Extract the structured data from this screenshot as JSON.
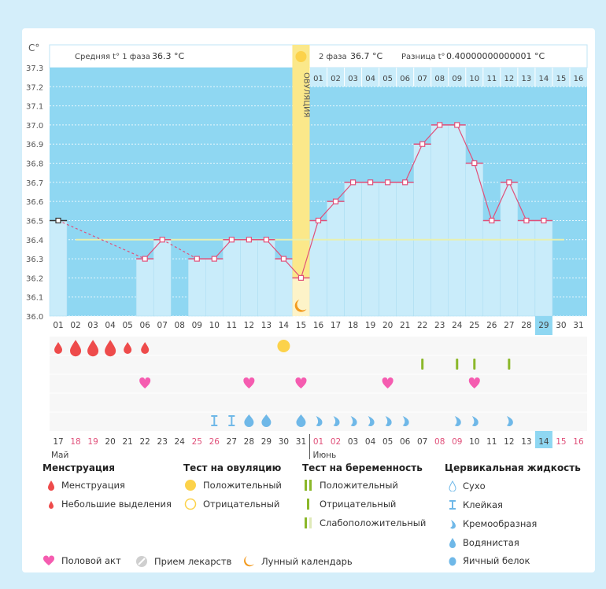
{
  "header": {
    "unit": "C°",
    "phase1_label": "Средняя t° 1 фаза",
    "phase1_value": "36.3 °C",
    "phase2_label": "2 фаза",
    "phase2_value": "36.7 °C",
    "diff_label": "Разница t°",
    "diff_value": "0.40000000000001 °C",
    "ovulation_label": "ОВУЛЯЦИЯ"
  },
  "chart_data": {
    "type": "line",
    "ylabel": "C°",
    "ylim": [
      36.0,
      37.3
    ],
    "yticks": [
      "36.0",
      "36.1",
      "36.2",
      "36.3",
      "36.4",
      "36.5",
      "36.6",
      "36.7",
      "36.8",
      "36.9",
      "37.0",
      "37.1",
      "37.2",
      "37.3"
    ],
    "cycle_days": [
      "01",
      "02",
      "03",
      "04",
      "05",
      "06",
      "07",
      "08",
      "09",
      "10",
      "11",
      "12",
      "13",
      "14",
      "15",
      "16",
      "17",
      "18",
      "19",
      "20",
      "21",
      "22",
      "23",
      "24",
      "25",
      "26",
      "27",
      "28",
      "29",
      "30",
      "31"
    ],
    "temperatures": [
      36.5,
      null,
      null,
      null,
      null,
      36.3,
      36.4,
      null,
      36.3,
      36.3,
      36.4,
      36.4,
      36.4,
      36.3,
      36.2,
      36.5,
      36.6,
      36.7,
      36.7,
      36.7,
      36.7,
      36.9,
      37.0,
      37.0,
      36.8,
      36.5,
      36.7,
      36.5,
      36.5,
      null,
      null
    ],
    "coverline": 36.4,
    "ovulation_day": 15,
    "current_cycle_day": 29,
    "phase2_day_labels": [
      "01",
      "02",
      "03",
      "04",
      "05",
      "06",
      "07",
      "08",
      "09",
      "10",
      "11",
      "12",
      "13",
      "14",
      "15",
      "16"
    ],
    "colors": {
      "line": "#e0507a",
      "bar": "#c9ecfa",
      "background": "#8fd7f2",
      "coverline": "#e8f0b0",
      "ovulation": "#fbe88a"
    }
  },
  "calendar": {
    "dates": [
      "17",
      "18",
      "19",
      "20",
      "21",
      "22",
      "23",
      "24",
      "25",
      "26",
      "27",
      "28",
      "29",
      "30",
      "31",
      "01",
      "02",
      "03",
      "04",
      "05",
      "06",
      "07",
      "08",
      "09",
      "10",
      "11",
      "12",
      "13",
      "14",
      "15",
      "16"
    ],
    "weekend": [
      false,
      true,
      true,
      false,
      false,
      false,
      false,
      false,
      true,
      true,
      false,
      false,
      false,
      false,
      false,
      true,
      true,
      false,
      false,
      false,
      false,
      false,
      true,
      true,
      false,
      false,
      false,
      false,
      false,
      true,
      true
    ],
    "today_index": 28,
    "month_1": "Май",
    "month_2": "Июнь"
  },
  "markers": {
    "menstruation": {
      "1": "small",
      "2": "large",
      "3": "large",
      "4": "large",
      "5": "small",
      "6": "small"
    },
    "ovulation_test_positive": [
      14
    ],
    "pregnancy_test_negative": [
      22,
      24,
      25,
      27
    ],
    "intercourse": [
      6,
      12,
      15,
      20,
      25
    ],
    "cervical_fluid": {
      "10": "sticky",
      "11": "sticky",
      "12": "watery",
      "13": "watery",
      "15": "watery",
      "16": "creamy",
      "17": "creamy",
      "18": "creamy",
      "19": "creamy",
      "20": "creamy",
      "21": "creamy",
      "24": "creamy",
      "25": "creamy",
      "27": "creamy"
    }
  },
  "legend": {
    "menstruation": {
      "title": "Менструация",
      "items": [
        "Менструация",
        "Небольшие выделения"
      ]
    },
    "ovulation_test": {
      "title": "Тест на овуляцию",
      "items": [
        "Положительный",
        "Отрицательный"
      ]
    },
    "pregnancy_test": {
      "title": "Тест на беременность",
      "items": [
        "Положительный",
        "Отрицательный",
        "Слабоположительный"
      ]
    },
    "cervical_fluid": {
      "title": "Цервикальная жидкость",
      "items": [
        "Сухо",
        "Клейкая",
        "Кремообразная",
        "Водянистая",
        "Яичный белок"
      ]
    },
    "other": [
      "Половой акт",
      "Прием лекарств",
      "Лунный календарь"
    ]
  }
}
